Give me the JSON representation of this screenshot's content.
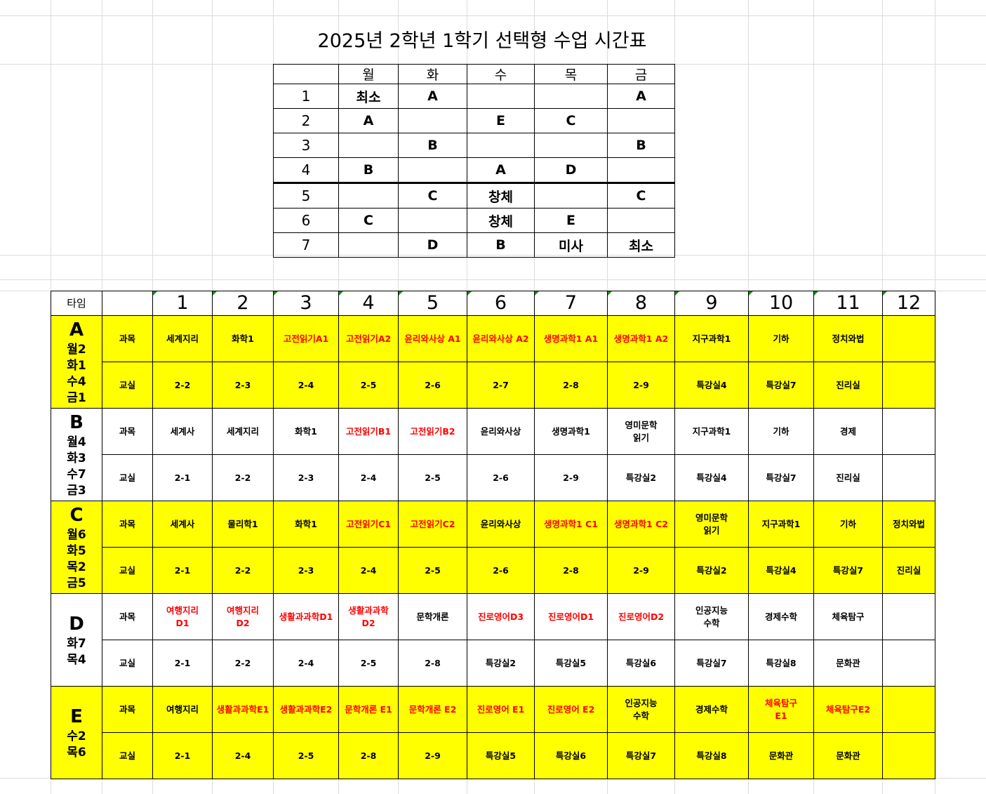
{
  "title": "2025년 2학년 1학기 선택형 수업 시간표",
  "colors": {
    "highlight": "#ffff00",
    "emphasis_text": "#ff0000"
  },
  "weekly": {
    "days": [
      "월",
      "화",
      "수",
      "목",
      "금"
    ],
    "periods": [
      {
        "p": "1",
        "cells": [
          "최소",
          "A",
          "",
          "",
          "A"
        ]
      },
      {
        "p": "2",
        "cells": [
          "A",
          "",
          "E",
          "C",
          ""
        ]
      },
      {
        "p": "3",
        "cells": [
          "",
          "B",
          "",
          "",
          "B"
        ]
      },
      {
        "p": "4",
        "cells": [
          "B",
          "",
          "A",
          "D",
          ""
        ]
      },
      {
        "p": "5",
        "cells": [
          "",
          "C",
          "창체",
          "",
          "C"
        ]
      },
      {
        "p": "6",
        "cells": [
          "C",
          "",
          "창체",
          "E",
          ""
        ]
      },
      {
        "p": "7",
        "cells": [
          "",
          "D",
          "B",
          "미사",
          "최소"
        ]
      }
    ]
  },
  "selection": {
    "type_header": "타임",
    "columns": [
      "1",
      "2",
      "3",
      "4",
      "5",
      "6",
      "7",
      "8",
      "9",
      "10",
      "11",
      "12"
    ],
    "subject_label": "과목",
    "room_label": "교실",
    "groups": [
      {
        "type": "A",
        "slots": "월2\n화1\n수4\n금1",
        "highlight": true,
        "subjects": [
          {
            "t": "세계지리"
          },
          {
            "t": "화학1"
          },
          {
            "t": "고전읽기A1",
            "red": true
          },
          {
            "t": "고전읽기A2",
            "red": true
          },
          {
            "t": "윤리와사상 A1",
            "red": true
          },
          {
            "t": "윤리와사상 A2",
            "red": true
          },
          {
            "t": "생명과학1 A1",
            "red": true
          },
          {
            "t": "생명과학1 A2",
            "red": true
          },
          {
            "t": "지구과학1"
          },
          {
            "t": "기하"
          },
          {
            "t": "정치와법"
          },
          {
            "t": ""
          }
        ],
        "rooms": [
          "2-2",
          "2-3",
          "2-4",
          "2-5",
          "2-6",
          "2-7",
          "2-8",
          "2-9",
          "특강실4",
          "특강실7",
          "진리실",
          ""
        ]
      },
      {
        "type": "B",
        "slots": "월4\n화3\n수7\n금3",
        "highlight": false,
        "subjects": [
          {
            "t": "세계사"
          },
          {
            "t": "세계지리"
          },
          {
            "t": "화학1"
          },
          {
            "t": "고전읽기B1",
            "red": true
          },
          {
            "t": "고전읽기B2",
            "red": true
          },
          {
            "t": "윤리와사상"
          },
          {
            "t": "생명과학1"
          },
          {
            "t": "영미문학\n읽기"
          },
          {
            "t": "지구과학1"
          },
          {
            "t": "기하"
          },
          {
            "t": "경제"
          },
          {
            "t": ""
          }
        ],
        "rooms": [
          "2-1",
          "2-2",
          "2-3",
          "2-4",
          "2-5",
          "2-6",
          "2-9",
          "특강실2",
          "특강실4",
          "특강실7",
          "진리실",
          ""
        ]
      },
      {
        "type": "C",
        "slots": "월6\n화5\n목2\n금5",
        "highlight": true,
        "subjects": [
          {
            "t": "세계사"
          },
          {
            "t": "물리학1"
          },
          {
            "t": "화학1"
          },
          {
            "t": "고전읽기C1",
            "red": true
          },
          {
            "t": "고전읽기C2",
            "red": true
          },
          {
            "t": "윤리와사상"
          },
          {
            "t": "생명과학1 C1",
            "red": true
          },
          {
            "t": "생명과학1 C2",
            "red": true
          },
          {
            "t": "영미문학\n읽기"
          },
          {
            "t": "지구과학1"
          },
          {
            "t": "기하"
          },
          {
            "t": "정치와법"
          }
        ],
        "rooms": [
          "2-1",
          "2-2",
          "2-3",
          "2-4",
          "2-5",
          "2-6",
          "2-8",
          "2-9",
          "특강실2",
          "특강실4",
          "특강실7",
          "진리실"
        ]
      },
      {
        "type": "D",
        "slots": "화7\n목4",
        "highlight": false,
        "subjects": [
          {
            "t": "여행지리\nD1",
            "red": true
          },
          {
            "t": "여행지리\nD2",
            "red": true
          },
          {
            "t": "생활과과학D1",
            "red": true
          },
          {
            "t": "생활과과학\nD2",
            "red": true
          },
          {
            "t": "문학개론"
          },
          {
            "t": "진로영어D3",
            "red": true
          },
          {
            "t": "진로영어D1",
            "red": true
          },
          {
            "t": "진로영어D2",
            "red": true
          },
          {
            "t": "인공지능\n수학"
          },
          {
            "t": "경제수학"
          },
          {
            "t": "체육탐구"
          },
          {
            "t": ""
          }
        ],
        "rooms": [
          "2-1",
          "2-2",
          "2-4",
          "2-5",
          "2-8",
          "특강실2",
          "특강실5",
          "특강실6",
          "특강실7",
          "특강실8",
          "문화관",
          ""
        ]
      },
      {
        "type": "E",
        "slots": "수2\n목6",
        "highlight": true,
        "subjects": [
          {
            "t": "여행지리"
          },
          {
            "t": "생활과과학E1",
            "red": true
          },
          {
            "t": "생활과과학E2",
            "red": true
          },
          {
            "t": "문학개론 E1",
            "red": true
          },
          {
            "t": "문학개론 E2",
            "red": true
          },
          {
            "t": "진로영어 E1",
            "red": true
          },
          {
            "t": "진로영어 E2",
            "red": true
          },
          {
            "t": "인공지능\n수학"
          },
          {
            "t": "경제수학"
          },
          {
            "t": "체육탐구\nE1",
            "red": true
          },
          {
            "t": "체육탐구E2",
            "red": true
          },
          {
            "t": ""
          }
        ],
        "rooms": [
          "2-1",
          "2-4",
          "2-5",
          "2-8",
          "2-9",
          "특강실5",
          "특강실6",
          "특강실7",
          "특강실8",
          "문화관",
          "문화관",
          ""
        ]
      }
    ]
  }
}
